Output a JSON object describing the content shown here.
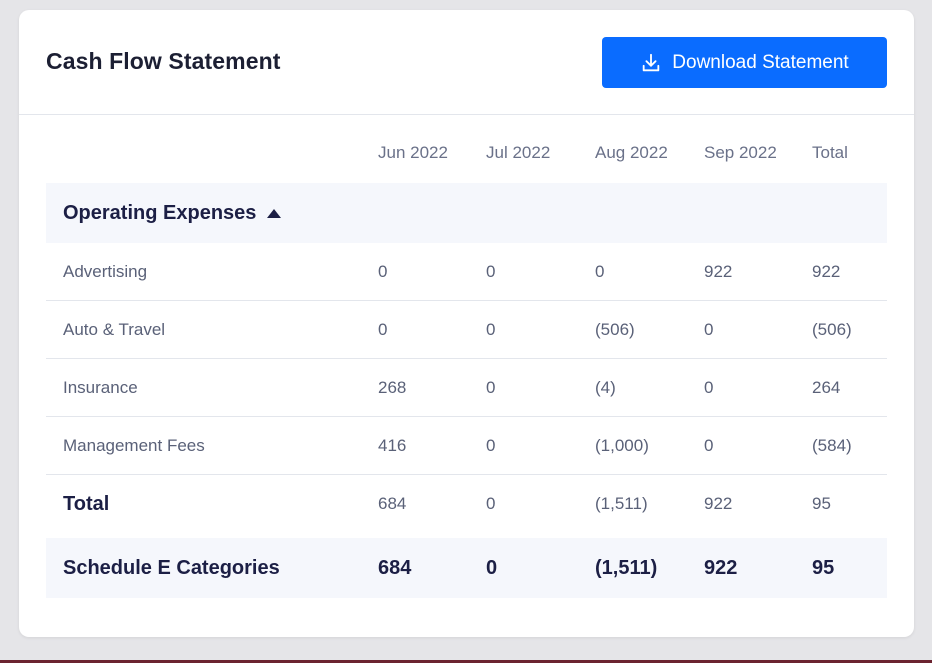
{
  "header": {
    "title": "Cash Flow Statement",
    "download_label": "Download Statement"
  },
  "table": {
    "columns": [
      "Jun 2022",
      "Jul 2022",
      "Aug 2022",
      "Sep 2022",
      "Total"
    ],
    "section": {
      "label": "Operating Expenses",
      "expanded": true
    },
    "rows": [
      {
        "label": "Advertising",
        "values": [
          "0",
          "0",
          "0",
          "922",
          "922"
        ]
      },
      {
        "label": "Auto & Travel",
        "values": [
          "0",
          "0",
          "(506)",
          "0",
          "(506)"
        ]
      },
      {
        "label": "Insurance",
        "values": [
          "268",
          "0",
          "(4)",
          "0",
          "264"
        ]
      },
      {
        "label": "Management Fees",
        "values": [
          "416",
          "0",
          "(1,000)",
          "0",
          "(584)"
        ]
      }
    ],
    "total": {
      "label": "Total",
      "values": [
        "684",
        "0",
        "(1,511)",
        "922",
        "95"
      ]
    },
    "summary": {
      "label": "Schedule E Categories",
      "values": [
        "684",
        "0",
        "(1,511)",
        "922",
        "95"
      ]
    }
  },
  "colors": {
    "accent": "#0a6cff",
    "title_text": "#1c1f33",
    "body_text": "#5a6178",
    "section_bg": "#f5f7fc",
    "divider": "#e3e6ec"
  },
  "icons": {
    "download": "download-icon",
    "caret": "caret-up-icon"
  }
}
